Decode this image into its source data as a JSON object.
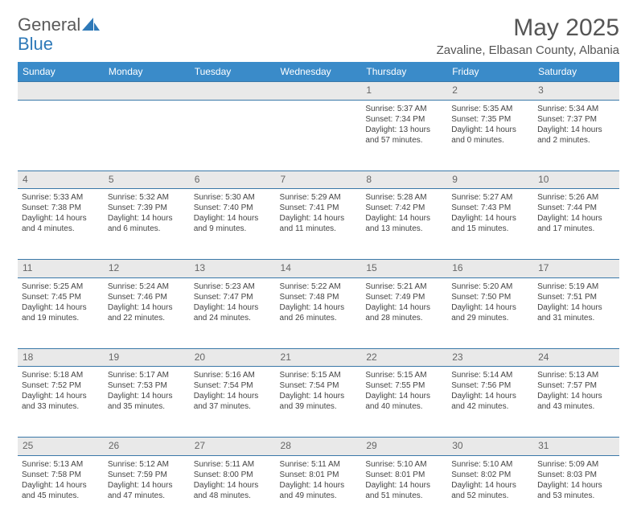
{
  "logo": {
    "text1": "General",
    "text2": "Blue"
  },
  "header": {
    "month_title": "May 2025",
    "location": "Zavaline, Elbasan County, Albania"
  },
  "colors": {
    "header_bg": "#3a8bc9",
    "header_text": "#ffffff",
    "daynum_bg": "#e9e9e9",
    "border": "#3a78a8",
    "logo_gray": "#5a5a5a",
    "logo_blue": "#2e79b8"
  },
  "weekdays": [
    "Sunday",
    "Monday",
    "Tuesday",
    "Wednesday",
    "Thursday",
    "Friday",
    "Saturday"
  ],
  "weeks": [
    {
      "nums": [
        "",
        "",
        "",
        "",
        "1",
        "2",
        "3"
      ],
      "cells": [
        null,
        null,
        null,
        null,
        {
          "sunrise": "5:37 AM",
          "sunset": "7:34 PM",
          "day_h": "13",
          "day_m": "57"
        },
        {
          "sunrise": "5:35 AM",
          "sunset": "7:35 PM",
          "day_h": "14",
          "day_m": "0"
        },
        {
          "sunrise": "5:34 AM",
          "sunset": "7:37 PM",
          "day_h": "14",
          "day_m": "2"
        }
      ]
    },
    {
      "nums": [
        "4",
        "5",
        "6",
        "7",
        "8",
        "9",
        "10"
      ],
      "cells": [
        {
          "sunrise": "5:33 AM",
          "sunset": "7:38 PM",
          "day_h": "14",
          "day_m": "4"
        },
        {
          "sunrise": "5:32 AM",
          "sunset": "7:39 PM",
          "day_h": "14",
          "day_m": "6"
        },
        {
          "sunrise": "5:30 AM",
          "sunset": "7:40 PM",
          "day_h": "14",
          "day_m": "9"
        },
        {
          "sunrise": "5:29 AM",
          "sunset": "7:41 PM",
          "day_h": "14",
          "day_m": "11"
        },
        {
          "sunrise": "5:28 AM",
          "sunset": "7:42 PM",
          "day_h": "14",
          "day_m": "13"
        },
        {
          "sunrise": "5:27 AM",
          "sunset": "7:43 PM",
          "day_h": "14",
          "day_m": "15"
        },
        {
          "sunrise": "5:26 AM",
          "sunset": "7:44 PM",
          "day_h": "14",
          "day_m": "17"
        }
      ]
    },
    {
      "nums": [
        "11",
        "12",
        "13",
        "14",
        "15",
        "16",
        "17"
      ],
      "cells": [
        {
          "sunrise": "5:25 AM",
          "sunset": "7:45 PM",
          "day_h": "14",
          "day_m": "19"
        },
        {
          "sunrise": "5:24 AM",
          "sunset": "7:46 PM",
          "day_h": "14",
          "day_m": "22"
        },
        {
          "sunrise": "5:23 AM",
          "sunset": "7:47 PM",
          "day_h": "14",
          "day_m": "24"
        },
        {
          "sunrise": "5:22 AM",
          "sunset": "7:48 PM",
          "day_h": "14",
          "day_m": "26"
        },
        {
          "sunrise": "5:21 AM",
          "sunset": "7:49 PM",
          "day_h": "14",
          "day_m": "28"
        },
        {
          "sunrise": "5:20 AM",
          "sunset": "7:50 PM",
          "day_h": "14",
          "day_m": "29"
        },
        {
          "sunrise": "5:19 AM",
          "sunset": "7:51 PM",
          "day_h": "14",
          "day_m": "31"
        }
      ]
    },
    {
      "nums": [
        "18",
        "19",
        "20",
        "21",
        "22",
        "23",
        "24"
      ],
      "cells": [
        {
          "sunrise": "5:18 AM",
          "sunset": "7:52 PM",
          "day_h": "14",
          "day_m": "33"
        },
        {
          "sunrise": "5:17 AM",
          "sunset": "7:53 PM",
          "day_h": "14",
          "day_m": "35"
        },
        {
          "sunrise": "5:16 AM",
          "sunset": "7:54 PM",
          "day_h": "14",
          "day_m": "37"
        },
        {
          "sunrise": "5:15 AM",
          "sunset": "7:54 PM",
          "day_h": "14",
          "day_m": "39"
        },
        {
          "sunrise": "5:15 AM",
          "sunset": "7:55 PM",
          "day_h": "14",
          "day_m": "40"
        },
        {
          "sunrise": "5:14 AM",
          "sunset": "7:56 PM",
          "day_h": "14",
          "day_m": "42"
        },
        {
          "sunrise": "5:13 AM",
          "sunset": "7:57 PM",
          "day_h": "14",
          "day_m": "43"
        }
      ]
    },
    {
      "nums": [
        "25",
        "26",
        "27",
        "28",
        "29",
        "30",
        "31"
      ],
      "cells": [
        {
          "sunrise": "5:13 AM",
          "sunset": "7:58 PM",
          "day_h": "14",
          "day_m": "45"
        },
        {
          "sunrise": "5:12 AM",
          "sunset": "7:59 PM",
          "day_h": "14",
          "day_m": "47"
        },
        {
          "sunrise": "5:11 AM",
          "sunset": "8:00 PM",
          "day_h": "14",
          "day_m": "48"
        },
        {
          "sunrise": "5:11 AM",
          "sunset": "8:01 PM",
          "day_h": "14",
          "day_m": "49"
        },
        {
          "sunrise": "5:10 AM",
          "sunset": "8:01 PM",
          "day_h": "14",
          "day_m": "51"
        },
        {
          "sunrise": "5:10 AM",
          "sunset": "8:02 PM",
          "day_h": "14",
          "day_m": "52"
        },
        {
          "sunrise": "5:09 AM",
          "sunset": "8:03 PM",
          "day_h": "14",
          "day_m": "53"
        }
      ]
    }
  ],
  "labels": {
    "sunrise": "Sunrise:",
    "sunset": "Sunset:",
    "daylight_prefix": "Daylight:",
    "hours_word": "hours",
    "and_word": "and",
    "minutes_word": "minutes."
  }
}
